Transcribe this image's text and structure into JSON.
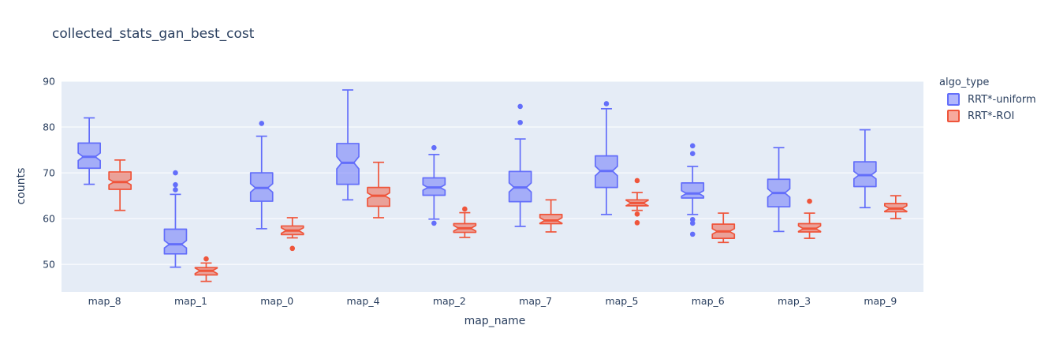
{
  "title": "collected_stats_gan_best_cost",
  "colors": {
    "background": "#ffffff",
    "plot_background": "#e5ecf6",
    "gridline": "#ffffff",
    "text": "#2a3f5f"
  },
  "legend": {
    "title": "algo_type"
  },
  "chart_data": {
    "type": "box",
    "title": "collected_stats_gan_best_cost",
    "xlabel": "map_name",
    "ylabel": "counts",
    "legend_title": "algo_type",
    "legend_position": "right-top",
    "grid": true,
    "notched": true,
    "categories": [
      "map_8",
      "map_1",
      "map_0",
      "map_4",
      "map_2",
      "map_7",
      "map_5",
      "map_6",
      "map_3",
      "map_9"
    ],
    "yticks": [
      50,
      60,
      70,
      80,
      90
    ],
    "ylim": [
      44,
      90
    ],
    "series": [
      {
        "name": "RRT*-uniform",
        "color": "#636efa",
        "fill_opacity": 0.5,
        "boxes": [
          {
            "low": 67.5,
            "q1": 71.0,
            "median": 73.5,
            "q3": 76.5,
            "high": 82.0,
            "outliers": []
          },
          {
            "low": 49.4,
            "q1": 52.3,
            "median": 54.4,
            "q3": 57.7,
            "high": 65.3,
            "outliers": [
              70.0,
              67.4,
              66.3
            ]
          },
          {
            "low": 57.8,
            "q1": 63.8,
            "median": 66.7,
            "q3": 70.0,
            "high": 78.0,
            "outliers": [
              80.8
            ]
          },
          {
            "low": 64.1,
            "q1": 67.5,
            "median": 72.2,
            "q3": 76.4,
            "high": 88.1,
            "outliers": []
          },
          {
            "low": 59.9,
            "q1": 65.1,
            "median": 66.8,
            "q3": 68.9,
            "high": 74.0,
            "outliers": [
              75.5,
              59.0
            ]
          },
          {
            "low": 58.3,
            "q1": 63.7,
            "median": 66.8,
            "q3": 70.3,
            "high": 77.4,
            "outliers": [
              84.5,
              81.0
            ]
          },
          {
            "low": 60.9,
            "q1": 66.8,
            "median": 70.4,
            "q3": 73.7,
            "high": 84.0,
            "outliers": [
              85.1
            ]
          },
          {
            "low": 60.9,
            "q1": 64.5,
            "median": 65.5,
            "q3": 67.8,
            "high": 71.4,
            "outliers": [
              75.9,
              74.2,
              59.8,
              59.0,
              56.6
            ]
          },
          {
            "low": 57.2,
            "q1": 62.6,
            "median": 65.6,
            "q3": 68.6,
            "high": 75.5,
            "outliers": []
          },
          {
            "low": 62.4,
            "q1": 67.0,
            "median": 69.5,
            "q3": 72.4,
            "high": 79.4,
            "outliers": []
          }
        ]
      },
      {
        "name": "RRT*-ROI",
        "color": "#ef553b",
        "fill_opacity": 0.5,
        "boxes": [
          {
            "low": 61.8,
            "q1": 66.4,
            "median": 68.0,
            "q3": 70.2,
            "high": 72.8,
            "outliers": []
          },
          {
            "low": 46.3,
            "q1": 47.7,
            "median": 48.6,
            "q3": 49.3,
            "high": 50.3,
            "outliers": [
              51.2
            ]
          },
          {
            "low": 55.8,
            "q1": 56.5,
            "median": 57.4,
            "q3": 58.4,
            "high": 60.2,
            "outliers": [
              53.5
            ]
          },
          {
            "low": 60.2,
            "q1": 62.7,
            "median": 65.0,
            "q3": 66.8,
            "high": 72.3,
            "outliers": []
          },
          {
            "low": 55.9,
            "q1": 57.0,
            "median": 57.9,
            "q3": 58.9,
            "high": 61.3,
            "outliers": [
              62.1
            ]
          },
          {
            "low": 57.1,
            "q1": 58.9,
            "median": 59.6,
            "q3": 60.9,
            "high": 64.1,
            "outliers": []
          },
          {
            "low": 61.8,
            "q1": 62.8,
            "median": 63.4,
            "q3": 64.1,
            "high": 65.7,
            "outliers": [
              68.3,
              61.0,
              59.1
            ]
          },
          {
            "low": 54.8,
            "q1": 55.7,
            "median": 57.2,
            "q3": 58.8,
            "high": 61.2,
            "outliers": []
          },
          {
            "low": 55.7,
            "q1": 57.1,
            "median": 57.8,
            "q3": 58.9,
            "high": 61.2,
            "outliers": [
              63.8
            ]
          },
          {
            "low": 60.0,
            "q1": 61.5,
            "median": 62.2,
            "q3": 63.3,
            "high": 65.0,
            "outliers": []
          }
        ]
      }
    ]
  }
}
